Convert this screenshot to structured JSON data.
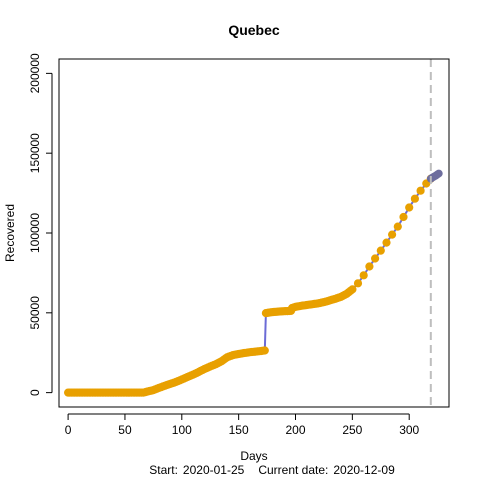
{
  "chart_data": {
    "type": "scatter",
    "title": "Quebec",
    "xlabel": "Days",
    "ylabel": "Recovered",
    "xlim": [
      -8,
      335
    ],
    "ylim": [
      -9000,
      209000
    ],
    "x_ticks": [
      0,
      50,
      100,
      150,
      200,
      250,
      300
    ],
    "y_ticks": [
      0,
      50000,
      100000,
      150000,
      200000
    ],
    "x_tick_labels": [
      "0",
      "50",
      "100",
      "150",
      "200",
      "250",
      "300"
    ],
    "y_tick_labels": [
      "0",
      "50000",
      "100000",
      "150000",
      "200000"
    ],
    "grid": false,
    "legend": "none",
    "current_day": 319,
    "footer": {
      "start_label": "Start:",
      "start_date": "2020-01-25",
      "current_label": "Current date:",
      "current_date": "2020-12-09"
    },
    "colors": {
      "observed": "#E8A000",
      "line": "#6B6BD6",
      "forecast": "#6E6E9E",
      "vline": "#BEBEBE",
      "axis": "#000000"
    },
    "series": [
      {
        "values": [
          [
            0,
            0
          ],
          [
            10,
            0
          ],
          [
            20,
            0
          ],
          [
            30,
            0
          ],
          [
            40,
            0
          ],
          [
            50,
            0
          ],
          [
            60,
            0
          ],
          [
            66,
            0
          ],
          [
            70,
            700
          ],
          [
            75,
            1600
          ],
          [
            80,
            3000
          ],
          [
            85,
            4300
          ],
          [
            90,
            5500
          ],
          [
            95,
            6700
          ],
          [
            100,
            8200
          ],
          [
            105,
            9800
          ],
          [
            110,
            11300
          ],
          [
            115,
            13000
          ],
          [
            120,
            14800
          ],
          [
            125,
            16400
          ],
          [
            130,
            17800
          ],
          [
            135,
            19700
          ],
          [
            140,
            22200
          ],
          [
            145,
            23500
          ],
          [
            150,
            24200
          ],
          [
            155,
            24800
          ],
          [
            160,
            25300
          ],
          [
            165,
            25700
          ],
          [
            170,
            26100
          ],
          [
            173,
            26400
          ],
          [
            174,
            49800
          ],
          [
            178,
            50300
          ],
          [
            182,
            50600
          ],
          [
            186,
            50800
          ],
          [
            190,
            51000
          ],
          [
            196,
            51200
          ],
          [
            197,
            53000
          ],
          [
            200,
            53700
          ],
          [
            205,
            54400
          ],
          [
            210,
            54900
          ],
          [
            215,
            55400
          ],
          [
            220,
            55900
          ],
          [
            225,
            56700
          ],
          [
            230,
            57700
          ],
          [
            235,
            58800
          ],
          [
            240,
            60000
          ],
          [
            245,
            61900
          ],
          [
            250,
            64700
          ],
          [
            255,
            68500
          ],
          [
            260,
            73500
          ],
          [
            265,
            79000
          ],
          [
            270,
            84000
          ],
          [
            275,
            89000
          ],
          [
            280,
            94000
          ],
          [
            285,
            99000
          ],
          [
            290,
            104000
          ],
          [
            295,
            110000
          ],
          [
            300,
            116000
          ],
          [
            305,
            121500
          ],
          [
            310,
            126500
          ],
          [
            315,
            131000
          ],
          [
            319,
            134000
          ]
        ]
      },
      {
        "values": [
          [
            319,
            134000
          ],
          [
            320,
            134500
          ],
          [
            321,
            135000
          ],
          [
            322,
            135400
          ],
          [
            323,
            135800
          ],
          [
            324,
            136300
          ],
          [
            325,
            136800
          ],
          [
            326,
            137300
          ]
        ]
      }
    ]
  }
}
